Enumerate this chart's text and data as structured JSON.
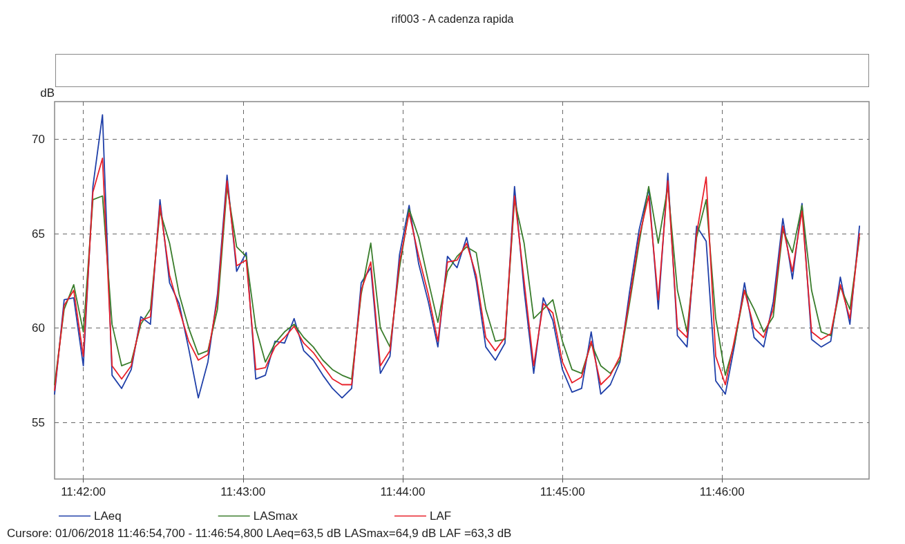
{
  "chart_data": {
    "type": "line",
    "title": "rif003 - A cadenza rapida",
    "ylabel": "dB",
    "x": [
      11.697,
      11.698,
      11.699,
      11.7,
      11.701,
      11.702,
      11.703,
      11.704,
      11.705,
      11.706,
      11.707,
      11.708,
      11.709,
      11.71,
      11.711,
      11.712,
      11.713,
      11.714,
      11.715,
      11.716,
      11.717,
      11.718,
      11.719,
      11.72,
      11.721,
      11.722,
      11.723,
      11.724,
      11.725,
      11.726,
      11.727,
      11.728,
      11.729,
      11.73,
      11.731,
      11.732,
      11.733,
      11.734,
      11.735,
      11.736,
      11.737,
      11.738,
      11.739,
      11.74,
      11.741,
      11.742,
      11.743,
      11.744,
      11.745,
      11.746,
      11.747,
      11.748,
      11.749,
      11.75,
      11.751,
      11.752,
      11.753,
      11.754,
      11.755,
      11.756,
      11.757,
      11.758,
      11.759,
      11.76,
      11.761,
      11.762,
      11.763,
      11.764,
      11.765,
      11.766,
      11.767,
      11.768,
      11.769,
      11.77,
      11.771,
      11.772,
      11.773,
      11.774,
      11.775,
      11.776,
      11.777,
      11.778,
      11.779,
      11.78,
      11.781
    ],
    "series": [
      {
        "name": "LAeq",
        "color": "#1f3fa8",
        "values": [
          56.5,
          61.5,
          61.6,
          58,
          67.5,
          71.3,
          57.5,
          56.8,
          57.8,
          60.6,
          60.2,
          66.8,
          62.4,
          61.3,
          58.9,
          56.3,
          58.2,
          61.8,
          68.1,
          63,
          64,
          57.3,
          57.5,
          59.3,
          59.2,
          60.5,
          58.8,
          58.3,
          57.5,
          56.8,
          56.3,
          56.8,
          62.4,
          63.2,
          57.6,
          58.5,
          63.9,
          66.5,
          63.4,
          61.4,
          59,
          63.8,
          63.2,
          64.8,
          62.5,
          59,
          58.3,
          59.2,
          67.5,
          62,
          57.6,
          61.6,
          60.4,
          57.8,
          56.6,
          56.8,
          59.8,
          56.5,
          57,
          58.2,
          61.9,
          65.2,
          67.4,
          61,
          68.2,
          59.6,
          59,
          65.4,
          64.6,
          57.2,
          56.5,
          59.2,
          62.4,
          59.5,
          59,
          61.4,
          65.8,
          62.6,
          66.6,
          59.4,
          59,
          59.3,
          62.7,
          60.2,
          65.4
        ]
      },
      {
        "name": "LASmax",
        "color": "#3a7d2c",
        "values": [
          57,
          61,
          62.3,
          59.8,
          66.8,
          67,
          60.2,
          58,
          58.2,
          60.2,
          61,
          66.2,
          64.5,
          61.8,
          60,
          58.6,
          58.8,
          61,
          67.5,
          64.3,
          63.8,
          60,
          58.2,
          59.2,
          59.8,
          60.2,
          59.5,
          59,
          58.3,
          57.8,
          57.5,
          57.3,
          61.8,
          64.5,
          60,
          59,
          63.2,
          66.3,
          64.8,
          62.5,
          60.3,
          63,
          63.8,
          64.3,
          64,
          61,
          59.3,
          59.4,
          66.8,
          64.5,
          60.5,
          61,
          61.5,
          59.3,
          57.8,
          57.6,
          59.2,
          58,
          57.6,
          58.3,
          61.3,
          64.5,
          67.5,
          64.5,
          67.5,
          62,
          59.8,
          64.8,
          66.8,
          60.5,
          57.5,
          59.3,
          62,
          61,
          59.8,
          60.6,
          65.2,
          64,
          66.5,
          62,
          59.8,
          59.6,
          62.2,
          61,
          64.8
        ]
      },
      {
        "name": "LAF",
        "color": "#e8202a",
        "values": [
          56.7,
          61.2,
          62,
          58.5,
          67.2,
          69,
          58,
          57.3,
          58,
          60.4,
          60.6,
          66.5,
          62.8,
          61,
          59.3,
          58.3,
          58.6,
          61.5,
          67.8,
          63.3,
          63.6,
          57.8,
          57.9,
          59,
          59.5,
          60.1,
          59.2,
          58.7,
          58,
          57.3,
          57,
          57,
          62,
          63.5,
          58,
          58.8,
          63.5,
          66.1,
          63.8,
          61.8,
          59.3,
          63.5,
          63.6,
          64.5,
          62.8,
          59.5,
          58.8,
          59.5,
          67,
          62.5,
          58,
          61.3,
          60.8,
          58.2,
          57.1,
          57.4,
          59.3,
          57,
          57.5,
          58.5,
          61.5,
          64.8,
          67,
          61.5,
          67.8,
          60,
          59.5,
          65,
          68,
          58.5,
          57,
          59.5,
          62,
          60,
          59.5,
          61,
          65.4,
          63,
          66.2,
          59.8,
          59.4,
          59.7,
          62.3,
          60.5,
          65
        ]
      }
    ],
    "xlim": [
      11.697,
      11.782
    ],
    "ylim": [
      52,
      72
    ],
    "xticks": [
      {
        "value": 11.7,
        "label": "11:42:00"
      },
      {
        "value": 11.716667,
        "label": "11:43:00"
      },
      {
        "value": 11.733333,
        "label": "11:44:00"
      },
      {
        "value": 11.75,
        "label": "11:45:00"
      },
      {
        "value": 11.766667,
        "label": "11:46:00"
      }
    ],
    "yticks": [
      55,
      60,
      65,
      70
    ],
    "grid": true,
    "legend": "bottom left",
    "marker": "none",
    "line_style": "solid",
    "annotations": [
      "Cursore: 01/06/2018 11:46:54,700 - 11:46:54,800  LAeq=63,5 dB  LASmax=64,9 dB  LAF =63,3 dB"
    ]
  }
}
